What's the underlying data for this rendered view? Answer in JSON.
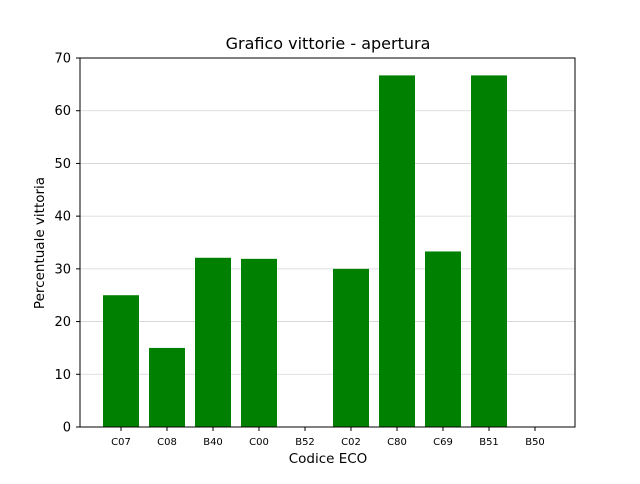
{
  "chart_data": {
    "type": "bar",
    "title": "Grafico vittorie - apertura",
    "xlabel": "Codice ECO",
    "ylabel": "Percentuale vittoria",
    "categories": [
      "C07",
      "C08",
      "B40",
      "C00",
      "B52",
      "C02",
      "C80",
      "C69",
      "B51",
      "B50"
    ],
    "values": [
      25.0,
      15.0,
      32.1,
      31.9,
      0,
      30.0,
      66.7,
      33.3,
      66.7,
      0
    ],
    "ylim": [
      0,
      70
    ],
    "yticks": [
      0,
      10,
      20,
      30,
      40,
      50,
      60,
      70
    ],
    "grid": "horizontal",
    "bar_color": "#008000",
    "grid_color": "#d3d3d3"
  }
}
